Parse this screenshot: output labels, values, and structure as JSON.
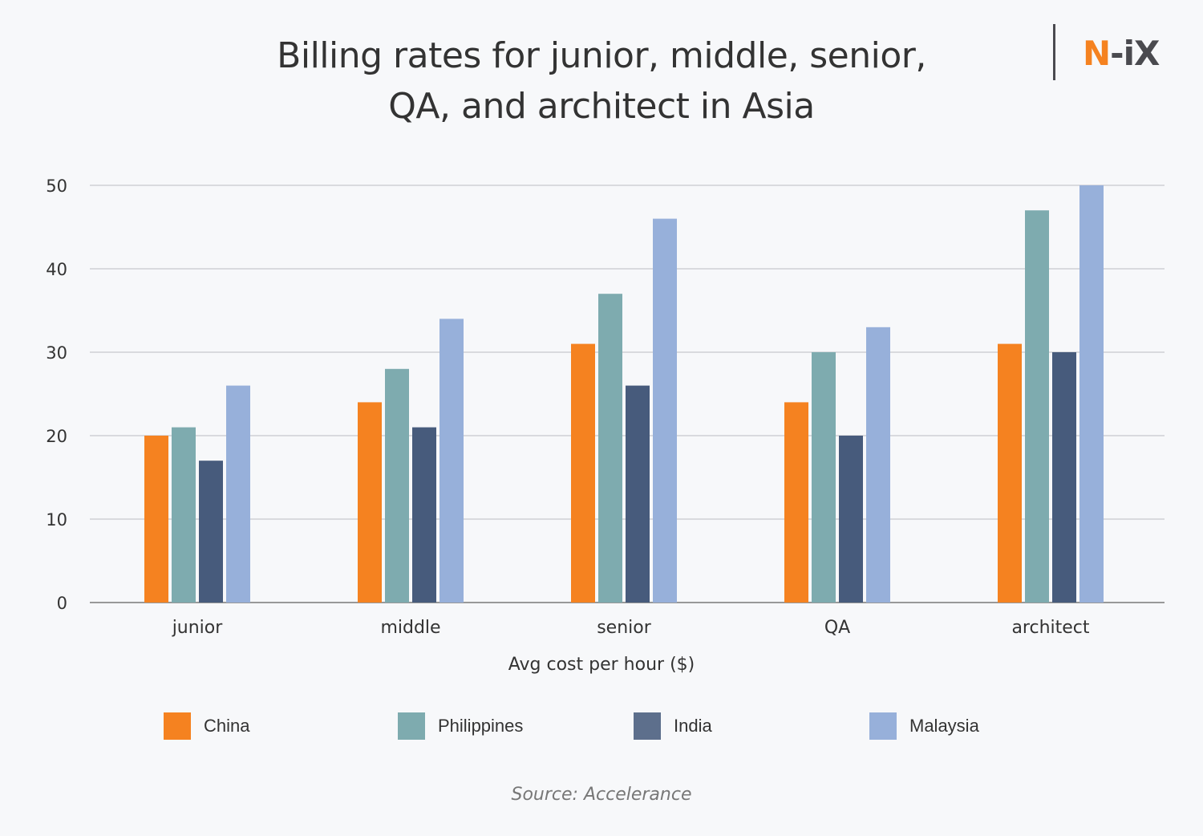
{
  "header": {
    "title_line1": "Billing rates for junior, middle, senior,",
    "title_line2": "QA, and architect in Asia",
    "logo_n": "N",
    "logo_rest": "-iX"
  },
  "source": "Source: Accelerance",
  "chart_data": {
    "type": "bar",
    "title": "Billing rates for junior, middle, senior, QA, and architect in Asia",
    "xlabel": "Avg cost per hour ($)",
    "ylabel": "",
    "ylim": [
      0,
      50
    ],
    "yticks": [
      "0",
      "10",
      "20",
      "30",
      "40",
      "50"
    ],
    "grid": true,
    "legend_position": "bottom",
    "categories": [
      "junior",
      "middle",
      "senior",
      "QA",
      "architect"
    ],
    "series": [
      {
        "name": "China",
        "color": "#f58220",
        "values": [
          20,
          24,
          31,
          24,
          31
        ]
      },
      {
        "name": "Philippines",
        "color": "#7eabaf",
        "values": [
          21,
          28,
          37,
          30,
          47
        ]
      },
      {
        "name": "India",
        "color": "#475b7c",
        "values": [
          17,
          21,
          26,
          20,
          30
        ]
      },
      {
        "name": "Malaysia",
        "color": "#97b0da",
        "values": [
          26,
          34,
          46,
          33,
          50
        ]
      }
    ],
    "legend_swatch_colors": [
      "#f58220",
      "#7eabaf",
      "#5d6f8c",
      "#97b0da"
    ],
    "source": "Accelerance"
  }
}
